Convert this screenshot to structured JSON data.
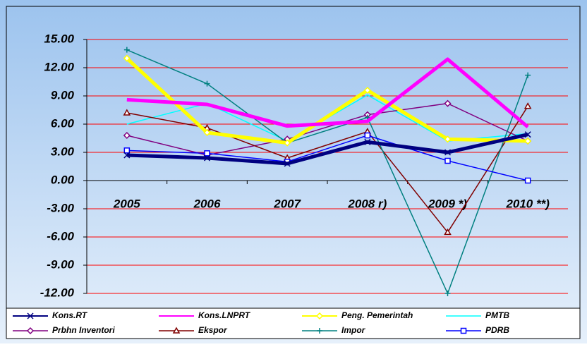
{
  "chart_data": {
    "type": "line",
    "categories": [
      "2005",
      "2006",
      "2007",
      "2008 r)",
      "2009 *)",
      "2010 **)"
    ],
    "ylim": [
      -12,
      15
    ],
    "yticks": [
      {
        "value": 15,
        "label": "15.00"
      },
      {
        "value": 12,
        "label": "12.00"
      },
      {
        "value": 9,
        "label": "9.00"
      },
      {
        "value": 6,
        "label": "6.00"
      },
      {
        "value": 3,
        "label": "3.00"
      },
      {
        "value": 0,
        "label": "0.00"
      },
      {
        "value": -3,
        "label": "-3.00"
      },
      {
        "value": -6,
        "label": "-6.00"
      },
      {
        "value": -9,
        "label": "-9.00"
      },
      {
        "value": -12,
        "label": "-12.00"
      }
    ],
    "grid": true,
    "grid_color": "#ff0000",
    "legend": "bottom",
    "series": [
      {
        "name": "Kons.RT",
        "color": "#000080",
        "line_width": 5,
        "marker": "x",
        "values": [
          2.7,
          2.4,
          1.8,
          4.1,
          3.0,
          4.9
        ]
      },
      {
        "name": "Kons.LNPRT",
        "color": "#ff00ff",
        "line_width": 5,
        "marker": "none",
        "values": [
          8.6,
          8.1,
          5.8,
          6.3,
          12.9,
          5.7
        ]
      },
      {
        "name": "Peng. Pemerintah",
        "color": "#ffff00",
        "line_width": 5,
        "marker": "diamond",
        "values": [
          13.0,
          5.1,
          4.0,
          9.6,
          4.4,
          4.2
        ]
      },
      {
        "name": "PMTB",
        "color": "#00ffff",
        "line_width": 1.5,
        "marker": "none",
        "values": [
          6.0,
          8.2,
          4.2,
          9.1,
          4.2,
          5.0
        ]
      },
      {
        "name": "Prbhn Inventori",
        "color": "#800080",
        "line_width": 1.5,
        "marker": "diamond",
        "values": [
          4.8,
          2.7,
          4.4,
          7.0,
          8.2,
          4.2
        ]
      },
      {
        "name": "Ekspor",
        "color": "#800000",
        "line_width": 1.5,
        "marker": "triangle",
        "values": [
          7.2,
          5.6,
          2.4,
          5.2,
          -5.5,
          7.9
        ]
      },
      {
        "name": "Impor",
        "color": "#008080",
        "line_width": 1.5,
        "marker": "plus",
        "values": [
          13.9,
          10.3,
          4.0,
          6.7,
          -12.0,
          11.2
        ]
      },
      {
        "name": "PDRB",
        "color": "#0000ff",
        "line_width": 1.5,
        "marker": "square",
        "values": [
          3.2,
          2.9,
          2.0,
          4.8,
          2.1,
          0.0
        ]
      }
    ]
  }
}
